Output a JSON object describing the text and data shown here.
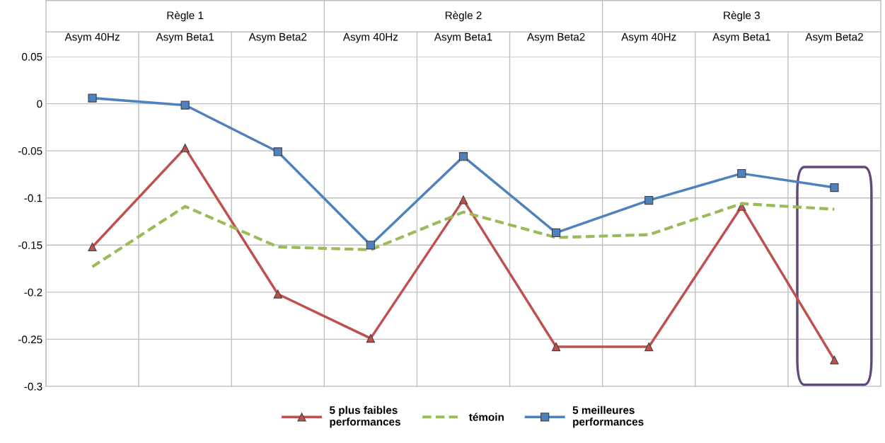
{
  "chart_data": {
    "type": "line",
    "categories": [
      "Asym 40Hz",
      "Asym Beta1",
      "Asym Beta2",
      "Asym 40Hz",
      "Asym Beta1",
      "Asym Beta2",
      "Asym 40Hz",
      "Asym Beta1",
      "Asym Beta2"
    ],
    "annotations": [
      "Règle 1",
      "Règle 2",
      "Règle 3"
    ],
    "series": [
      {
        "name": "5 plus faibles\nperformances",
        "color": "#c0504d",
        "marker": "triangle",
        "line_style": "solid",
        "values": [
          -0.152,
          -0.047,
          -0.202,
          -0.249,
          -0.102,
          -0.258,
          -0.258,
          -0.109,
          -0.272
        ]
      },
      {
        "name": "témoin",
        "color": "#9bbb59",
        "marker": "none",
        "line_style": "dashed",
        "values": [
          -0.173,
          -0.109,
          -0.152,
          -0.155,
          -0.115,
          -0.142,
          -0.139,
          -0.106,
          -0.112
        ]
      },
      {
        "name": "5 meilleures\nperformances",
        "color": "#4f81bd",
        "marker": "square",
        "line_style": "solid",
        "values": [
          0.006,
          -0.0015,
          -0.051,
          -0.15,
          -0.056,
          -0.137,
          -0.1025,
          -0.074,
          -0.089
        ]
      }
    ],
    "ylim": [
      -0.3,
      0.05
    ],
    "yticks": [
      0.05,
      0,
      -0.05,
      -0.1,
      -0.15,
      -0.2,
      -0.25,
      -0.3
    ],
    "grid": "y",
    "legend": "bottom"
  }
}
